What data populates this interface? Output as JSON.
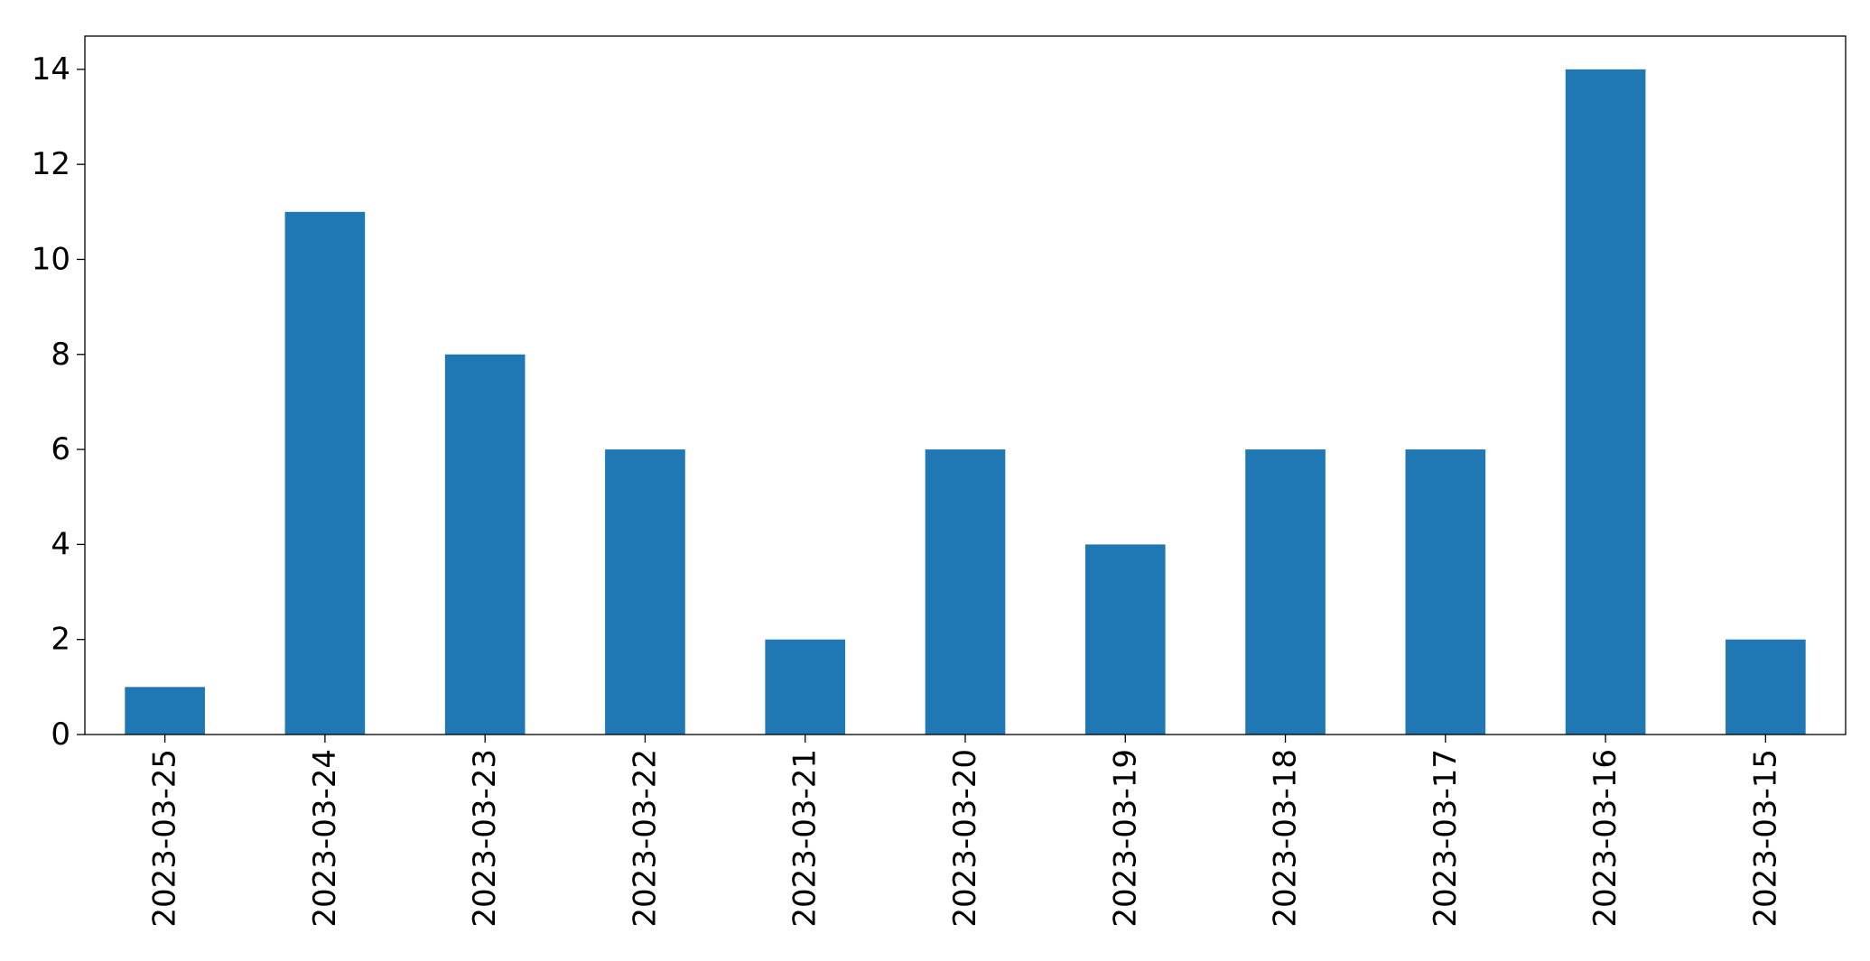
{
  "chart_data": {
    "type": "bar",
    "title": "",
    "xlabel": "",
    "ylabel": "",
    "categories": [
      "2023-03-25",
      "2023-03-24",
      "2023-03-23",
      "2023-03-22",
      "2023-03-21",
      "2023-03-20",
      "2023-03-19",
      "2023-03-18",
      "2023-03-17",
      "2023-03-16",
      "2023-03-15"
    ],
    "values": [
      1,
      11,
      8,
      6,
      2,
      6,
      4,
      6,
      6,
      14,
      2
    ],
    "ylim": [
      0,
      14.7
    ],
    "yticks": [
      0,
      2,
      4,
      6,
      8,
      10,
      12,
      14
    ],
    "ytick_labels": [
      "0",
      "2",
      "4",
      "6",
      "8",
      "10",
      "12",
      "14"
    ],
    "bar_color": "#1f77b4",
    "grid": false,
    "legend": "none"
  }
}
